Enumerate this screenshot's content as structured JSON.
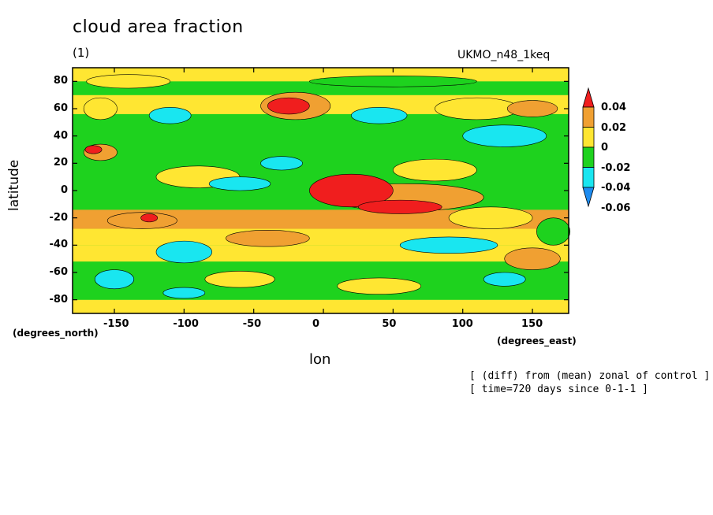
{
  "chart_data": {
    "type": "heatmap",
    "title": "cloud area fraction",
    "subtitle": "(1)",
    "model": "UKMO_n48_1keq",
    "xlabel": "lon",
    "ylabel": "latitude",
    "x_units": "(degrees_east)",
    "y_units": "(degrees_north)",
    "xlim": [
      -180,
      176
    ],
    "ylim": [
      -90,
      90
    ],
    "x_ticks": [
      "-150",
      "-100",
      "-50",
      "0",
      "50",
      "100",
      "150"
    ],
    "x_tick_values": [
      -150,
      -100,
      -50,
      0,
      50,
      100,
      150
    ],
    "y_ticks": [
      "80",
      "60",
      "40",
      "20",
      "0",
      "-20",
      "-40",
      "-60",
      "-80"
    ],
    "y_tick_values": [
      80,
      60,
      40,
      20,
      0,
      -20,
      -40,
      -60,
      -80
    ],
    "colorbar": {
      "labels": [
        "0.04",
        "0.02",
        "0",
        "-0.02",
        "-0.04",
        "-0.06"
      ],
      "levels": [
        -0.06,
        -0.04,
        -0.02,
        0,
        0.02,
        0.04
      ],
      "colors": [
        "#1e8cf0",
        "#19e6f0",
        "#1ed21e",
        "#ffe632",
        "#f0a032",
        "#f01e1e"
      ],
      "extends": "both"
    },
    "notes": [
      "[ (diff) from (mean) zonal of control ]",
      "[ time=720 days since 0-1-1 ]"
    ]
  },
  "colors": {
    "green": "#1ed21e",
    "yellow": "#ffe632",
    "orange": "#f0a032",
    "red": "#f01e1e",
    "cyan": "#19e6f0",
    "blue": "#1e8cf0"
  }
}
